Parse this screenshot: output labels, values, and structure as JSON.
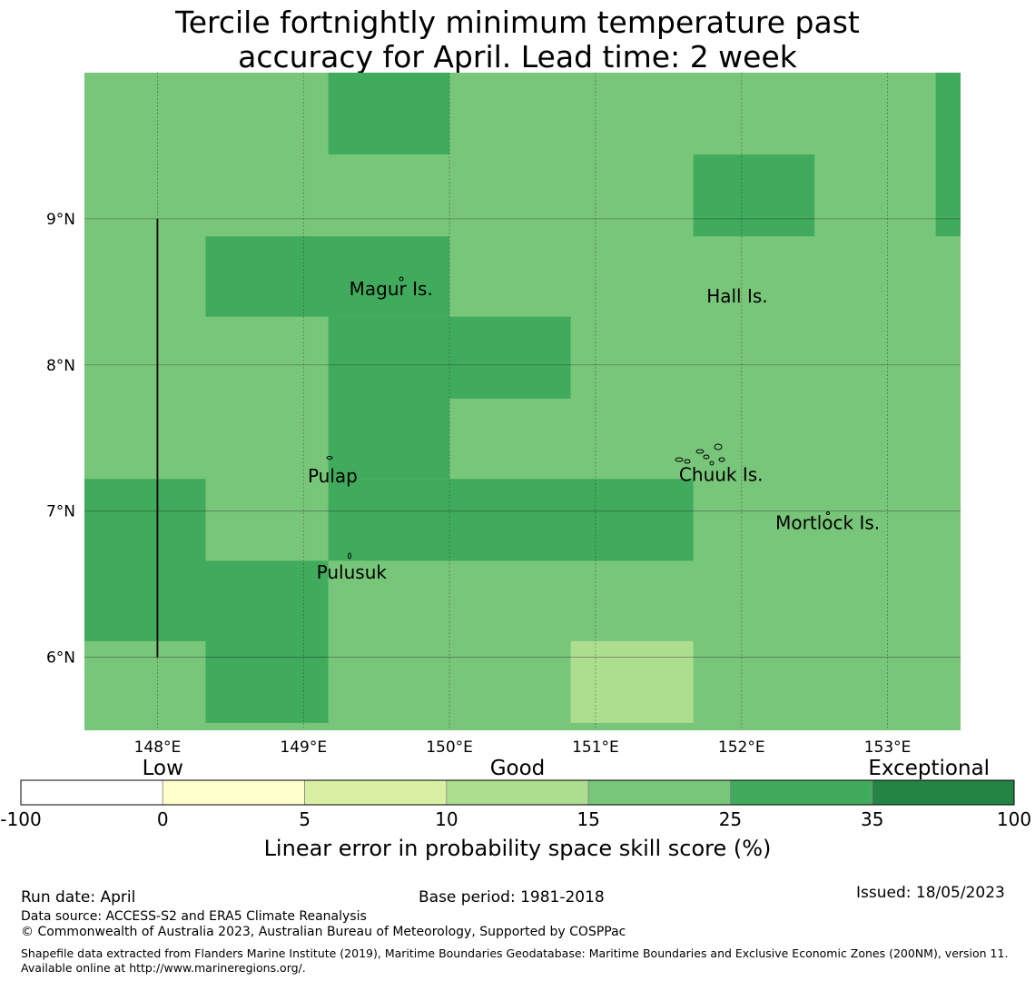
{
  "title_line1": "Tercile fortnightly minimum temperature past",
  "title_line2": "accuracy for April. Lead time: 2 week",
  "map": {
    "lon_range": [
      147.5,
      153.5
    ],
    "lat_range": [
      5.5,
      10.0
    ],
    "lon_ticks": [
      {
        "value": 148,
        "label": "148°E"
      },
      {
        "value": 149,
        "label": "149°E"
      },
      {
        "value": 150,
        "label": "150°E"
      },
      {
        "value": 151,
        "label": "151°E"
      },
      {
        "value": 152,
        "label": "152°E"
      },
      {
        "value": 153,
        "label": "153°E"
      }
    ],
    "lat_ticks": [
      {
        "value": 9,
        "label": "9°N"
      },
      {
        "value": 8,
        "label": "8°N"
      },
      {
        "value": 7,
        "label": "7°N"
      },
      {
        "value": 6,
        "label": "6°N"
      }
    ],
    "background_color": "#78c679",
    "cells": [
      {
        "lon0": 149.17,
        "lon1": 150.0,
        "lat0": 9.44,
        "lat1": 10.0,
        "color": "#41ab5d"
      },
      {
        "lon0": 153.33,
        "lon1": 153.5,
        "lat0": 8.88,
        "lat1": 10.0,
        "color": "#41ab5d"
      },
      {
        "lon0": 151.67,
        "lon1": 152.5,
        "lat0": 8.88,
        "lat1": 9.44,
        "color": "#41ab5d"
      },
      {
        "lon0": 148.33,
        "lon1": 150.0,
        "lat0": 8.33,
        "lat1": 8.88,
        "color": "#41ab5d"
      },
      {
        "lon0": 149.17,
        "lon1": 150.0,
        "lat0": 7.22,
        "lat1": 8.33,
        "color": "#41ab5d"
      },
      {
        "lon0": 150.0,
        "lon1": 150.83,
        "lat0": 7.77,
        "lat1": 8.33,
        "color": "#41ab5d"
      },
      {
        "lon0": 147.5,
        "lon1": 148.33,
        "lat0": 6.11,
        "lat1": 7.22,
        "color": "#41ab5d"
      },
      {
        "lon0": 149.17,
        "lon1": 151.67,
        "lat0": 6.66,
        "lat1": 7.22,
        "color": "#41ab5d"
      },
      {
        "lon0": 148.33,
        "lon1": 149.17,
        "lat0": 5.55,
        "lat1": 6.66,
        "color": "#41ab5d"
      },
      {
        "lon0": 150.83,
        "lon1": 151.67,
        "lat0": 5.55,
        "lat1": 6.11,
        "color": "#addd8e"
      }
    ],
    "boundary_line": {
      "lon": 148.0,
      "lat0": 6.0,
      "lat1": 9.0
    },
    "places": [
      {
        "name": "Magur Is.",
        "lon": 149.6,
        "lat": 8.52
      },
      {
        "name": "Hall Is.",
        "lon": 151.97,
        "lat": 8.47
      },
      {
        "name": "Pulap",
        "lon": 149.2,
        "lat": 7.24
      },
      {
        "name": "Chuuk Is.",
        "lon": 151.86,
        "lat": 7.25
      },
      {
        "name": "Mortlock Is.",
        "lon": 152.59,
        "lat": 6.92
      },
      {
        "name": "Pulusuk",
        "lon": 149.33,
        "lat": 6.58
      }
    ]
  },
  "legend": {
    "categories": [
      {
        "label": "Low",
        "at": 1
      },
      {
        "label": "Good",
        "at": 3.5
      },
      {
        "label": "Exceptional",
        "at": 6.4
      }
    ],
    "bins": [
      {
        "from": "-100",
        "to": "0",
        "color": "#ffffff"
      },
      {
        "from": "0",
        "to": "5",
        "color": "#ffffcc"
      },
      {
        "from": "5",
        "to": "10",
        "color": "#d9f0a3"
      },
      {
        "from": "10",
        "to": "15",
        "color": "#addd8e"
      },
      {
        "from": "15",
        "to": "25",
        "color": "#78c679"
      },
      {
        "from": "25",
        "to": "35",
        "color": "#41ab5d"
      },
      {
        "from": "35",
        "to": "100",
        "color": "#238443"
      }
    ],
    "tick_labels": [
      "-100",
      "0",
      "5",
      "10",
      "15",
      "25",
      "35",
      "100"
    ],
    "axis_label": "Linear error in probability space skill score (%)"
  },
  "footer": {
    "run_date": "Run date: April",
    "base_period": "Base period: 1981-2018",
    "issued": "Issued: 18/05/2023",
    "data_source": "Data source: ACCESS-S2 and ERA5 Climate Reanalysis",
    "copyright": "© Commonwealth of Australia 2023, Australian Bureau of Meteorology, Supported by COSPPac",
    "shapefile": "Shapefile data extracted from Flanders Marine Institute (2019), Maritime Boundaries Geodatabase: Maritime Boundaries and Exclusive Economic Zones (200NM), version 11. Available online at http://www.marineregions.org/."
  }
}
